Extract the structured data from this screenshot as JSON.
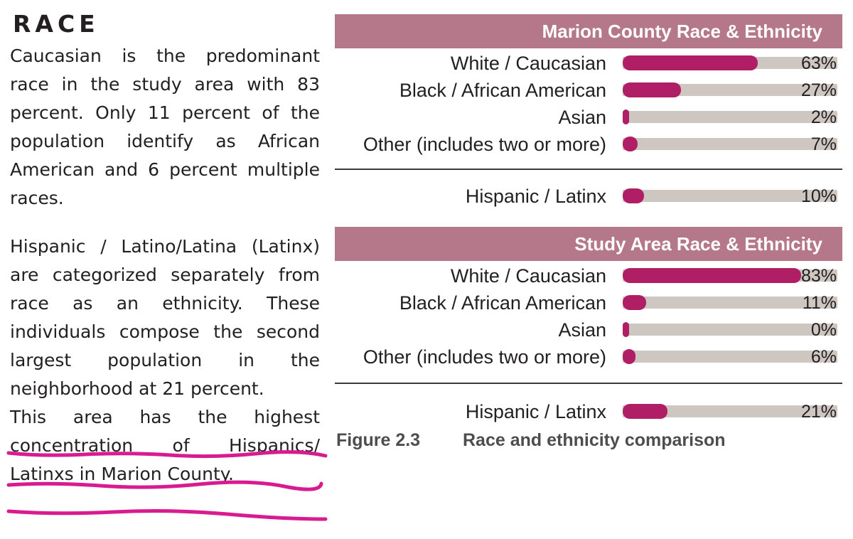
{
  "section": {
    "title": "RACE",
    "paragraph1": "Caucasian is the predominant race in the study area with 83 percent. Only 11 percent of the population identify as African American and 6 percent multiple races.",
    "paragraph2": "Hispanic / Latino/Latina (Latinx) are categorized separately from race as an ethnicity. These individuals compose the second largest population in the neighborhood at 21 percent.",
    "highlighted_text": "This area has the highest concentration of Hispanics/ Latinxs in Marion County.",
    "highlight_color": "#d81b8f"
  },
  "chart_data": {
    "type": "bar",
    "orientation": "horizontal",
    "unit": "%",
    "xlim": [
      0,
      100
    ],
    "bar_color": "#b01e66",
    "track_color": "#cdc6c1",
    "header_color": "#b5788a",
    "panels": [
      {
        "title": "Marion County Race & Ethnicity",
        "race": [
          {
            "label": "White / Caucasian",
            "value": 63,
            "value_label": "63%"
          },
          {
            "label": "Black / African American",
            "value": 27,
            "value_label": "27%"
          },
          {
            "label": "Asian",
            "value": 2,
            "value_label": "2%"
          },
          {
            "label": "Other (includes two or more)",
            "value": 7,
            "value_label": "7%"
          }
        ],
        "ethnicity": {
          "label": "Hispanic / Latinx",
          "value": 10,
          "value_label": "10%"
        }
      },
      {
        "title": "Study Area Race & Ethnicity",
        "race": [
          {
            "label": "White / Caucasian",
            "value": 83,
            "value_label": "83%"
          },
          {
            "label": "Black / African American",
            "value": 11,
            "value_label": "11%"
          },
          {
            "label": "Asian",
            "value": 0,
            "value_label": "0%"
          },
          {
            "label": "Other (includes two or more)",
            "value": 6,
            "value_label": "6%"
          }
        ],
        "ethnicity": {
          "label": "Hispanic / Latinx",
          "value": 21,
          "value_label": "21%"
        }
      }
    ],
    "caption": {
      "number": "Figure 2.3",
      "text": "Race and ethnicity comparison"
    }
  }
}
